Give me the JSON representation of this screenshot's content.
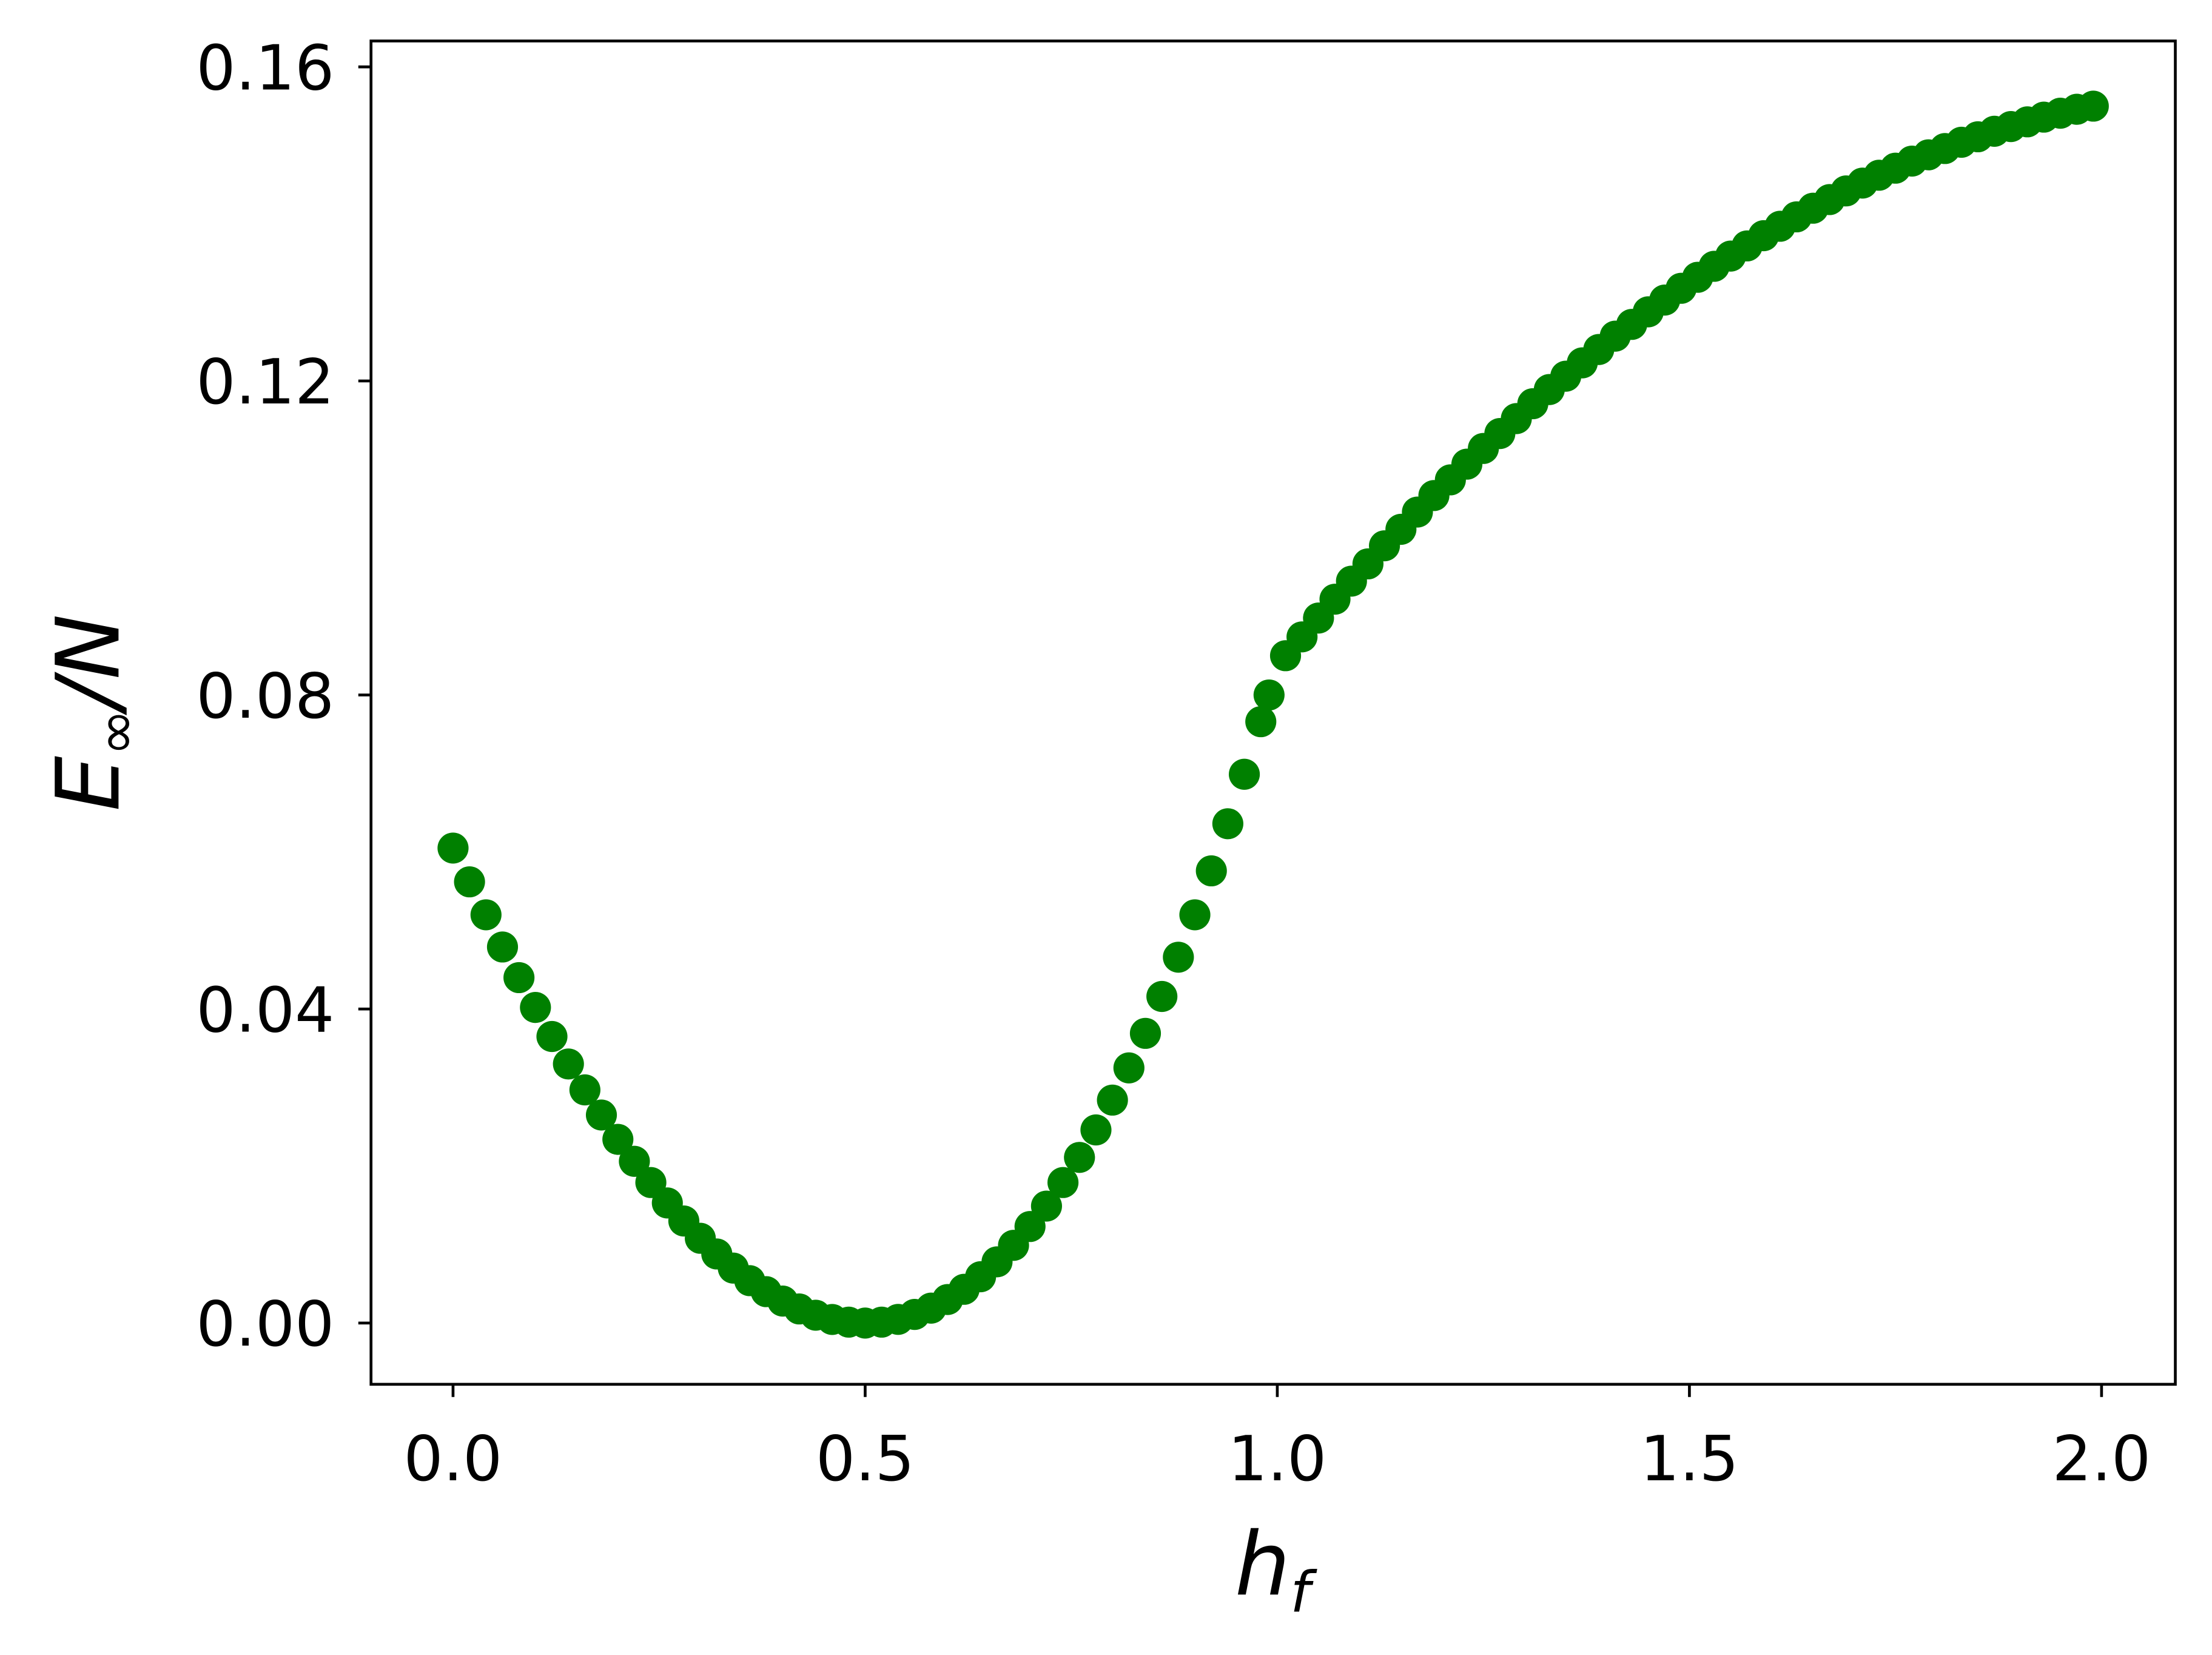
{
  "chart_data": {
    "type": "scatter",
    "xlabel": [
      "h",
      "f"
    ],
    "ylabel": [
      "E",
      "∞",
      "/N"
    ],
    "color": "#008000",
    "x": [
      0,
      0.02,
      0.04,
      0.06,
      0.08,
      0.1,
      0.12,
      0.14,
      0.16,
      0.18,
      0.2,
      0.22,
      0.24,
      0.26,
      0.28,
      0.3,
      0.32,
      0.34,
      0.36,
      0.38,
      0.4,
      0.42,
      0.44,
      0.46,
      0.48,
      0.5,
      0.52,
      0.54,
      0.56,
      0.58,
      0.6,
      0.62,
      0.64,
      0.66,
      0.68,
      0.7,
      0.72,
      0.74,
      0.76,
      0.78,
      0.8,
      0.82,
      0.84,
      0.86,
      0.88,
      0.9,
      0.92,
      0.94,
      0.96,
      0.98,
      0.99,
      1.01,
      1.03,
      1.05,
      1.07,
      1.09,
      1.11,
      1.13,
      1.15,
      1.17,
      1.19,
      1.21,
      1.23,
      1.25,
      1.27,
      1.29,
      1.31,
      1.33,
      1.35,
      1.37,
      1.39,
      1.41,
      1.43,
      1.45,
      1.47,
      1.49,
      1.51,
      1.53,
      1.55,
      1.57,
      1.59,
      1.61,
      1.63,
      1.65,
      1.67,
      1.69,
      1.71,
      1.73,
      1.75,
      1.77,
      1.79,
      1.81,
      1.83,
      1.85,
      1.87,
      1.89,
      1.91,
      1.93,
      1.95,
      1.97,
      1.99
    ],
    "values": [
      0.0605,
      0.0562,
      0.052,
      0.0479,
      0.044,
      0.0402,
      0.0365,
      0.033,
      0.0297,
      0.0265,
      0.0234,
      0.0206,
      0.0179,
      0.0153,
      0.013,
      0.0108,
      0.0088,
      0.007,
      0.0054,
      0.004,
      0.0028,
      0.0018,
      0.001,
      0.00046,
      0.00012,
      0,
      0.00012,
      0.00047,
      0.0011,
      0.0019,
      0.003,
      0.0043,
      0.0059,
      0.0078,
      0.0099,
      0.0123,
      0.0149,
      0.0179,
      0.0211,
      0.0246,
      0.0284,
      0.0325,
      0.0369,
      0.0416,
      0.0466,
      0.052,
      0.0576,
      0.0636,
      0.0699,
      0.0766,
      0.08,
      0.085,
      0.0874,
      0.0898,
      0.0922,
      0.0945,
      0.0967,
      0.099,
      0.1011,
      0.1033,
      0.1054,
      0.1074,
      0.1094,
      0.1114,
      0.1133,
      0.1152,
      0.1171,
      0.1189,
      0.1206,
      0.1223,
      0.124,
      0.1257,
      0.1272,
      0.1288,
      0.1303,
      0.1318,
      0.1332,
      0.1346,
      0.1359,
      0.1372,
      0.1385,
      0.1397,
      0.1409,
      0.142,
      0.1431,
      0.1442,
      0.1452,
      0.1462,
      0.1471,
      0.148,
      0.1488,
      0.1496,
      0.1504,
      0.1511,
      0.1518,
      0.1524,
      0.153,
      0.1536,
      0.1541,
      0.1546,
      0.155
    ],
    "xlim": [
      -0.0995,
      2.0895
    ],
    "ylim": [
      -0.0078,
      0.1633
    ],
    "xticks": [
      {
        "value": 0,
        "label": "0.0"
      },
      0.5,
      {
        "value": 1,
        "label": "1.0"
      },
      1.5,
      {
        "value": 2,
        "label": "2.0"
      }
    ],
    "yticks": [
      {
        "value": 0,
        "label": "0.00"
      },
      {
        "value": 0.04,
        "label": "0.04"
      },
      {
        "value": 0.08,
        "label": "0.08"
      },
      {
        "value": 0.12,
        "label": "0.12"
      },
      {
        "value": 0.16,
        "label": "0.16"
      }
    ],
    "grid": false
  }
}
